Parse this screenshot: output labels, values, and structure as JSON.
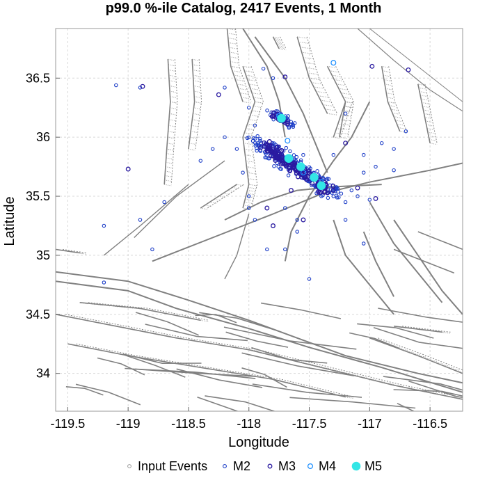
{
  "chart_data": {
    "type": "scatter",
    "title": "p99.0 %-ile Catalog, 2417 Events, 1 Month",
    "xlabel": "Longitude",
    "ylabel": "Latitude",
    "xlim": [
      -119.6,
      -116.23
    ],
    "ylim": [
      33.68,
      36.92
    ],
    "x_ticks": [
      -119.5,
      -119,
      -118.5,
      -118,
      -117.5,
      -117,
      -116.5
    ],
    "x_tick_labels": [
      "-119.5",
      "-119",
      "-118.5",
      "-118",
      "-117.5",
      "-117",
      "-116.5"
    ],
    "y_ticks": [
      34,
      34.5,
      35,
      35.5,
      36,
      36.5
    ],
    "y_tick_labels": [
      "34",
      "34.5",
      "35",
      "35.5",
      "36",
      "36.5"
    ],
    "grid": true,
    "legend_position": "bottom",
    "legend": [
      {
        "label": "Input Events",
        "style": "open-gray"
      },
      {
        "label": "M2",
        "style": "open-blue-small"
      },
      {
        "label": "M3",
        "style": "open-indigo"
      },
      {
        "label": "M4",
        "style": "open-cyan"
      },
      {
        "label": "M5",
        "style": "filled-cyan"
      }
    ],
    "colors": {
      "input": "#999999",
      "m2": "#1e3fc8",
      "m3": "#2a1aa0",
      "m4": "#1e90ff",
      "m5": "#33e6e6",
      "fault": "#808080",
      "grid": "#d8d8d8"
    },
    "series": [
      {
        "name": "M2",
        "points": [
          [
            -118.9,
            36.42
          ],
          [
            -119.1,
            36.44
          ],
          [
            -118.2,
            36.42
          ],
          [
            -117.88,
            36.58
          ],
          [
            -117.8,
            36.5
          ],
          [
            -117.2,
            36.2
          ],
          [
            -116.9,
            35.95
          ],
          [
            -116.8,
            35.9
          ],
          [
            -117.05,
            35.85
          ],
          [
            -116.95,
            35.75
          ],
          [
            -117.05,
            35.7
          ],
          [
            -117.1,
            35.5
          ],
          [
            -117.2,
            35.45
          ],
          [
            -117.2,
            35.3
          ],
          [
            -117.05,
            35.1
          ],
          [
            -117.7,
            35.05
          ],
          [
            -117.5,
            34.8
          ],
          [
            -118.0,
            35.5
          ],
          [
            -118.05,
            35.7
          ],
          [
            -118.1,
            35.9
          ],
          [
            -118.3,
            35.9
          ],
          [
            -118.4,
            35.8
          ],
          [
            -118.7,
            35.45
          ],
          [
            -118.9,
            35.3
          ],
          [
            -119.2,
            35.25
          ],
          [
            -118.8,
            35.05
          ],
          [
            -119.2,
            34.77
          ],
          [
            -118.0,
            35.4
          ],
          [
            -117.95,
            35.3
          ],
          [
            -117.6,
            35.3
          ],
          [
            -117.7,
            35.4
          ],
          [
            -116.8,
            35.72
          ],
          [
            -116.7,
            36.05
          ],
          [
            -117.3,
            35.5
          ],
          [
            -117.15,
            35.55
          ],
          [
            -117.4,
            35.5
          ],
          [
            -117.6,
            35.2
          ],
          [
            -117.85,
            35.05
          ],
          [
            -117.0,
            35.47
          ],
          [
            -118.2,
            36.0
          ],
          [
            -117.95,
            36.1
          ],
          [
            -118.0,
            36.25
          ],
          [
            -117.55,
            35.85
          ],
          [
            -117.3,
            35.85
          ],
          [
            -117.35,
            35.65
          ]
        ]
      },
      {
        "name": "M3",
        "points": [
          [
            -116.68,
            36.57
          ],
          [
            -116.98,
            36.6
          ],
          [
            -117.7,
            36.51
          ],
          [
            -118.25,
            36.36
          ],
          [
            -118.88,
            36.43
          ],
          [
            -119.0,
            35.73
          ],
          [
            -117.78,
            36.17
          ],
          [
            -117.7,
            35.8
          ],
          [
            -117.2,
            35.95
          ],
          [
            -116.95,
            35.48
          ],
          [
            -117.1,
            35.57
          ],
          [
            -117.55,
            35.3
          ],
          [
            -117.8,
            35.25
          ],
          [
            -117.85,
            35.4
          ],
          [
            -117.65,
            35.55
          ]
        ]
      },
      {
        "name": "M4",
        "points": [
          [
            -117.3,
            36.63
          ],
          [
            -117.75,
            36.18
          ],
          [
            -117.68,
            35.97
          ],
          [
            -117.55,
            35.7
          ],
          [
            -117.4,
            35.62
          ]
        ]
      },
      {
        "name": "M5",
        "points": [
          [
            -117.73,
            36.16
          ],
          [
            -117.67,
            35.82
          ],
          [
            -117.57,
            35.75
          ],
          [
            -117.46,
            35.66
          ],
          [
            -117.4,
            35.59
          ]
        ]
      }
    ],
    "cluster_segments": [
      {
        "name": "M2",
        "from": [
          -117.95,
          35.98
        ],
        "to": [
          -117.3,
          35.52
        ],
        "width": 0.12,
        "count": 200
      },
      {
        "name": "M3",
        "from": [
          -117.9,
          35.95
        ],
        "to": [
          -117.35,
          35.55
        ],
        "width": 0.07,
        "count": 160
      },
      {
        "name": "M2",
        "from": [
          -117.82,
          36.22
        ],
        "to": [
          -117.62,
          36.1
        ],
        "width": 0.06,
        "count": 40
      },
      {
        "name": "M3",
        "from": [
          -117.8,
          36.2
        ],
        "to": [
          -117.68,
          36.12
        ],
        "width": 0.04,
        "count": 20
      }
    ]
  }
}
